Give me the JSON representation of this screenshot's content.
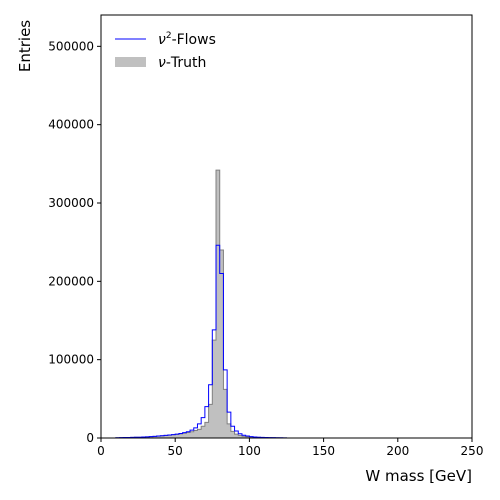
{
  "chart_data": {
    "type": "histogram",
    "xlabel": "W mass [GeV]",
    "ylabel": "Entries",
    "xlim": [
      0,
      250
    ],
    "ylim": [
      0,
      540000
    ],
    "xticks": [
      0,
      50,
      100,
      150,
      200,
      250
    ],
    "yticks": [
      0,
      100000,
      200000,
      300000,
      400000,
      500000
    ],
    "grid": false,
    "legend_position": "top-left",
    "bin_width": 2.5,
    "series": [
      {
        "name": "ν²-Flows",
        "legend_main": "ν",
        "legend_sup": "2",
        "legend_rest": "-Flows",
        "style": "step",
        "color": "#0000ff",
        "x": [
          10,
          12.5,
          15,
          17.5,
          20,
          22.5,
          25,
          27.5,
          30,
          32.5,
          35,
          37.5,
          40,
          42.5,
          45,
          47.5,
          50,
          52.5,
          55,
          57.5,
          60,
          62.5,
          65,
          67.5,
          70,
          72.5,
          75,
          77.5,
          80,
          82.5,
          85,
          87.5,
          90,
          92.5,
          95,
          97.5,
          100,
          102.5,
          105,
          107.5,
          110,
          112.5,
          115,
          117.5,
          120,
          122.5,
          125
        ],
        "values": [
          300,
          500,
          600,
          700,
          800,
          900,
          1000,
          1200,
          1500,
          1800,
          2100,
          2500,
          2900,
          3300,
          3800,
          4300,
          5000,
          5800,
          6800,
          8000,
          10000,
          13000,
          18000,
          26000,
          40000,
          68000,
          138000,
          246000,
          210000,
          87000,
          33000,
          15000,
          9000,
          5500,
          3500,
          2500,
          1800,
          1300,
          1000,
          800,
          600,
          500,
          400,
          300,
          250,
          200,
          0
        ]
      },
      {
        "name": "ν-Truth",
        "legend_main": "ν",
        "legend_rest": "-Truth",
        "style": "filled-step",
        "color": "#c0c0c0",
        "edge_color": "#808080",
        "x": [
          10,
          12.5,
          15,
          17.5,
          20,
          22.5,
          25,
          27.5,
          30,
          32.5,
          35,
          37.5,
          40,
          42.5,
          45,
          47.5,
          50,
          52.5,
          55,
          57.5,
          60,
          62.5,
          65,
          67.5,
          70,
          72.5,
          75,
          77.5,
          80,
          82.5,
          85,
          87.5,
          90,
          92.5,
          95,
          97.5,
          100,
          102.5,
          105,
          107.5,
          110,
          112.5,
          115,
          117.5,
          120,
          122.5,
          125
        ],
        "values": [
          300,
          500,
          600,
          700,
          800,
          900,
          1000,
          1200,
          1500,
          1800,
          2100,
          2500,
          2900,
          3300,
          3700,
          4100,
          4700,
          5300,
          6000,
          7000,
          8000,
          9500,
          11000,
          15000,
          20000,
          43000,
          125000,
          342000,
          240000,
          62000,
          18000,
          8500,
          5000,
          3300,
          2300,
          1700,
          1300,
          1000,
          800,
          650,
          500,
          400,
          300,
          250,
          200,
          150,
          0
        ]
      }
    ]
  }
}
